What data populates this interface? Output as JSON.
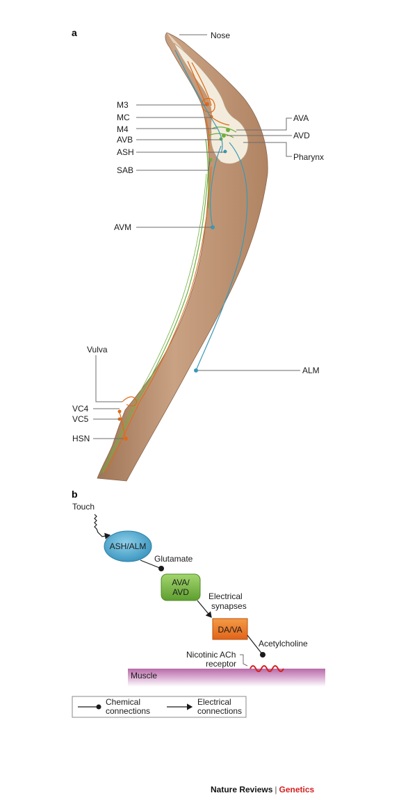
{
  "panels": {
    "a": "a",
    "b": "b"
  },
  "panel_a": {
    "labels": {
      "nose": "Nose",
      "m3": "M3",
      "mc": "MC",
      "m4": "M4",
      "avb": "AVB",
      "ash": "ASH",
      "sab": "SAB",
      "ava": "AVA",
      "avd": "AVD",
      "pharynx": "Pharynx",
      "avm": "AVM",
      "alm": "ALM",
      "vulva": "Vulva",
      "vc4": "VC4",
      "vc5": "VC5",
      "hsn": "HSN"
    }
  },
  "panel_b": {
    "touch": "Touch",
    "sensory": "ASH/ALM",
    "glutamate": "Glutamate",
    "inter_line1": "AVA/",
    "inter_line2": "AVD",
    "electrical_line1": "Electrical",
    "electrical_line2": "synapses",
    "motor": "DA/VA",
    "acetylcholine": "Acetylcholine",
    "receptor_line1": "Nicotinic ACh",
    "receptor_line2": "receptor",
    "muscle": "Muscle"
  },
  "legend": {
    "chemical_line1": "Chemical",
    "chemical_line2": "connections",
    "electrical_line1": "Electrical",
    "electrical_line2": "connections"
  },
  "footer": {
    "publisher": "Nature Reviews",
    "separator": "|",
    "journal": "Genetics"
  },
  "colors": {
    "body": "#c49a7a",
    "motor_neuron": "#e06a18",
    "interneuron": "#6fae3e",
    "mechanosensory": "#3a98b8",
    "muscle": "#b86aa8",
    "receptor": "#d42020",
    "journal": "#d41e1e"
  }
}
